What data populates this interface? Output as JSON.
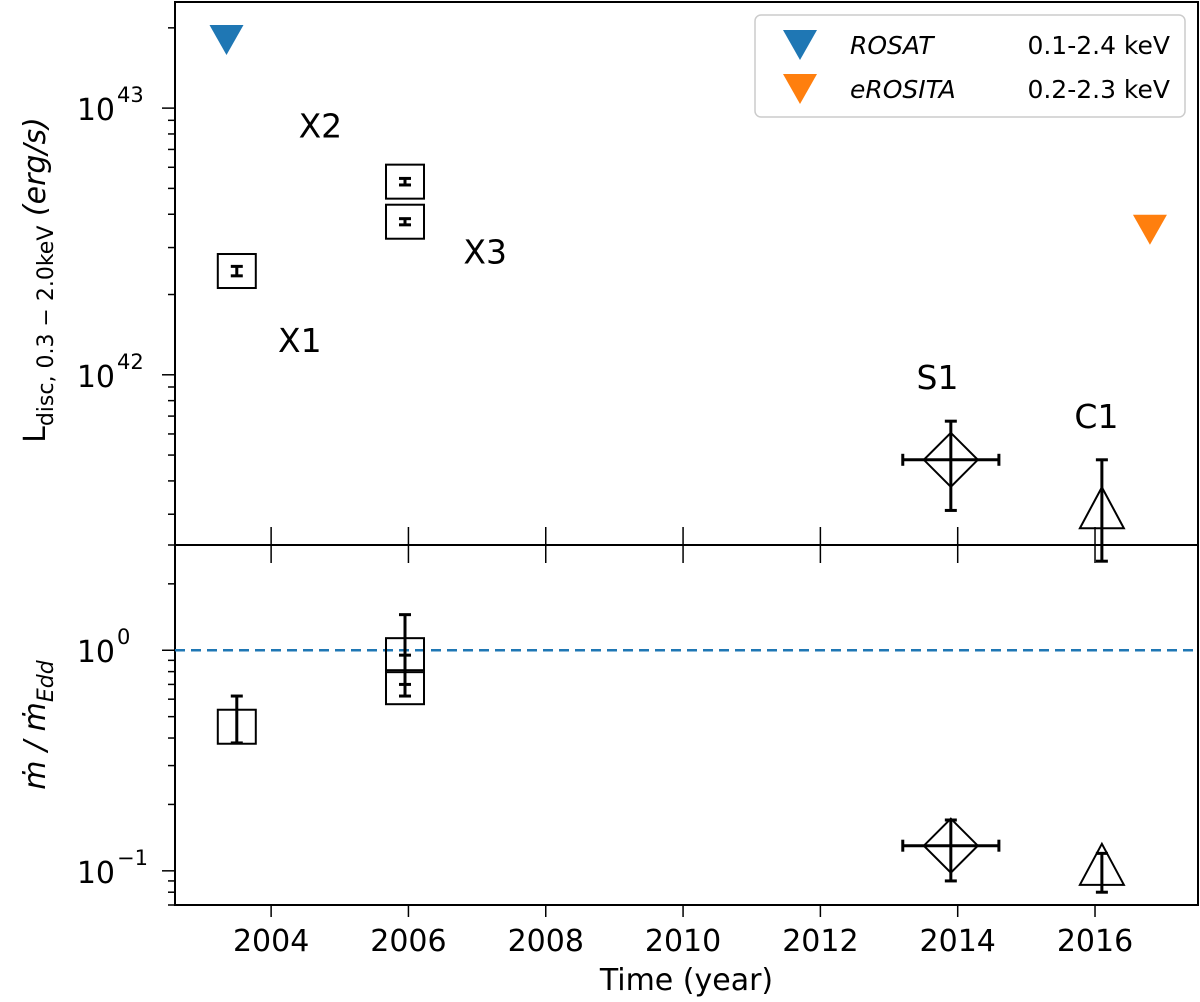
{
  "chart_data": [
    {
      "type": "scatter",
      "panel": "top",
      "ylabel_text": {
        "base": "L",
        "sub": "disc, 0.3 − 2.0keV",
        "unit": "(erg/s)"
      },
      "yscale": "log",
      "ylim": [
        2.3e+41,
        2.5e+43
      ],
      "xlim": [
        2002.6,
        2017.5
      ],
      "yticks": [
        {
          "value": 1e+42,
          "base": "10",
          "exp": "42"
        },
        {
          "value": 1e+43,
          "base": "10",
          "exp": "43"
        }
      ],
      "points": [
        {
          "label": "X1",
          "marker": "square",
          "x": 2003.5,
          "y": 2.45e+42,
          "yerr": [
            2.35e+42,
            2.55e+42
          ]
        },
        {
          "label": "X2",
          "marker": "square",
          "x": 2005.95,
          "y": 5.3e+42,
          "yerr": [
            5.15e+42,
            5.45e+42
          ]
        },
        {
          "label": "X3",
          "marker": "square",
          "x": 2005.95,
          "y": 3.75e+42,
          "yerr": [
            3.65e+42,
            3.85e+42
          ]
        },
        {
          "label": "S1",
          "marker": "diamond",
          "x": 2013.9,
          "y": 4.8e+41,
          "yerr": [
            3.1e+41,
            6.7e+41
          ],
          "xerr": [
            2013.2,
            2014.6
          ]
        },
        {
          "label": "C1",
          "marker": "triangle-up",
          "x": 2016.1,
          "y": 3e+41,
          "yerr": [
            2e+41,
            4.8e+41
          ]
        }
      ],
      "upper_limits": [
        {
          "name": "ROSAT",
          "band": "0.1-2.4 keV",
          "color": "#1f77b4",
          "x": 2003.35,
          "y": 1.8e+43
        },
        {
          "name": "eROSITA",
          "band": "0.2-2.3 keV",
          "color": "#ff7f0e",
          "x": 2016.8,
          "y": 3.5e+42
        }
      ],
      "annotations": [
        "X1",
        "X2",
        "X3",
        "S1",
        "C1"
      ],
      "legend": {
        "location": "top-right",
        "entries": [
          {
            "name": "ROSAT",
            "band": "0.1-2.4 keV",
            "color": "#1f77b4"
          },
          {
            "name": "eROSITA",
            "band": "0.2-2.3 keV",
            "color": "#ff7f0e"
          }
        ]
      }
    },
    {
      "type": "scatter",
      "panel": "bottom",
      "ylabel_text": {
        "left": "ṁ / ṁ",
        "sub": "Edd"
      },
      "xlabel": "Time (year)",
      "yscale": "log",
      "ylim": [
        0.07,
        3.0
      ],
      "xlim": [
        2002.6,
        2017.5
      ],
      "xticks": [
        2004,
        2006,
        2008,
        2010,
        2012,
        2014,
        2016
      ],
      "yticks": [
        {
          "value": 0.1,
          "base": "10",
          "exp": "−1"
        },
        {
          "value": 1.0,
          "base": "10",
          "exp": "0"
        }
      ],
      "reference_line": {
        "y": 1.0,
        "style": "dashed",
        "color": "#1f77b4"
      },
      "points": [
        {
          "label": "X1",
          "marker": "square",
          "x": 2003.5,
          "y": 0.45,
          "yerr": [
            0.38,
            0.62
          ]
        },
        {
          "label": "X2",
          "marker": "square",
          "x": 2005.95,
          "y": 0.95,
          "yerr": [
            0.7,
            1.45
          ]
        },
        {
          "label": "X3",
          "marker": "square",
          "x": 2005.95,
          "y": 0.68,
          "yerr": [
            0.62,
            0.95
          ]
        },
        {
          "label": "S1",
          "marker": "diamond",
          "x": 2013.9,
          "y": 0.13,
          "yerr": [
            0.09,
            0.17
          ],
          "xerr": [
            2013.2,
            2014.6
          ]
        },
        {
          "label": "C1",
          "marker": "triangle-up",
          "x": 2016.1,
          "y": 0.1,
          "yerr": [
            0.08,
            0.12
          ]
        }
      ]
    }
  ]
}
